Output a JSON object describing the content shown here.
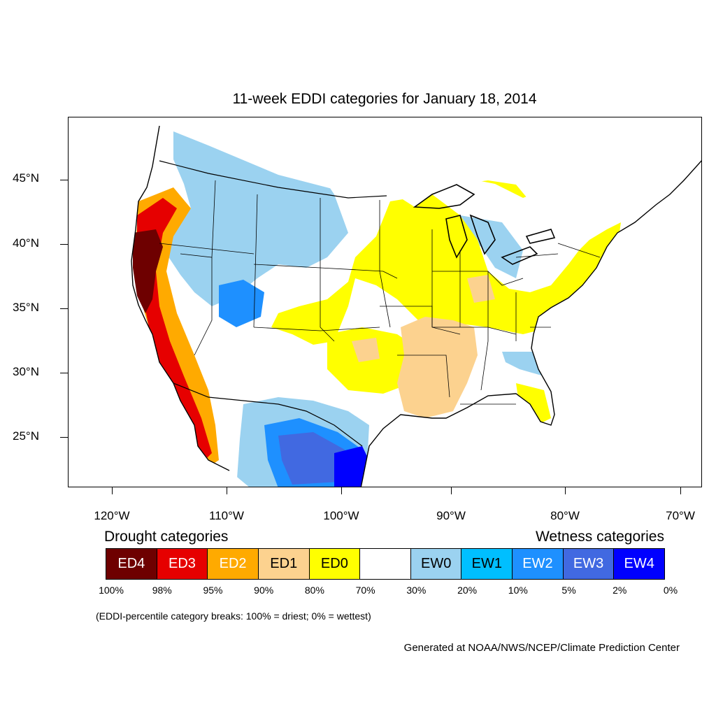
{
  "title": "11-week EDDI categories for January 18, 2014",
  "latitude_labels": [
    "45°N",
    "40°N",
    "35°N",
    "30°N",
    "25°N"
  ],
  "longitude_labels": [
    "120°W",
    "110°W",
    "100°W",
    "90°W",
    "80°W",
    "70°W"
  ],
  "legend": {
    "drought_heading": "Drought categories",
    "wetness_heading": "Wetness categories",
    "categories": [
      {
        "label": "ED4",
        "color": "#6e0000",
        "text_color": "#ffffff"
      },
      {
        "label": "ED3",
        "color": "#e60000",
        "text_color": "#ffffff"
      },
      {
        "label": "ED2",
        "color": "#ffaa00",
        "text_color": "#ffffff"
      },
      {
        "label": "ED1",
        "color": "#fcd28f",
        "text_color": "#000000"
      },
      {
        "label": "ED0",
        "color": "#ffff00",
        "text_color": "#000000"
      },
      {
        "label": "",
        "color": "#ffffff",
        "text_color": "#000000"
      },
      {
        "label": "EW0",
        "color": "#9bd2f0",
        "text_color": "#000000"
      },
      {
        "label": "EW1",
        "color": "#00bfff",
        "text_color": "#000000"
      },
      {
        "label": "EW2",
        "color": "#1e90ff",
        "text_color": "#ffffff"
      },
      {
        "label": "EW3",
        "color": "#4169e1",
        "text_color": "#ffffff"
      },
      {
        "label": "EW4",
        "color": "#0000ff",
        "text_color": "#ffffff"
      }
    ],
    "breaks": [
      "100%",
      "98%",
      "95%",
      "90%",
      "80%",
      "70%",
      "30%",
      "20%",
      "10%",
      "5%",
      "2%",
      "0%"
    ]
  },
  "note": "(EDDI-percentile category breaks: 100% = driest; 0% = wettest)",
  "credit": "Generated at NOAA/NWS/NCEP/Climate Prediction Center"
}
